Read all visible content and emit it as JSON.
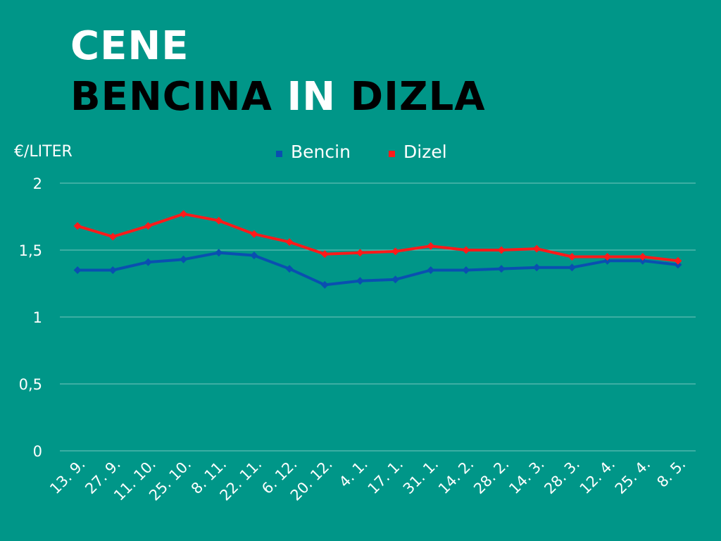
{
  "title": {
    "line1": "CENE",
    "line2_part1": "BENCINA",
    "line2_part2": "IN",
    "line2_part3": "DIZLA"
  },
  "chart_data": {
    "type": "line",
    "ylabel": "€/LITER",
    "ylim": [
      0,
      2
    ],
    "yticks": [
      "0",
      "0,5",
      "1",
      "1,5",
      "2"
    ],
    "ytick_values": [
      0,
      0.5,
      1,
      1.5,
      2
    ],
    "grid": true,
    "legend_position": "top",
    "categories": [
      "13. 9.",
      "27. 9.",
      "11. 10.",
      "25. 10.",
      "8. 11.",
      "22. 11.",
      "6. 12.",
      "20. 12.",
      "4. 1.",
      "17. 1.",
      "31. 1.",
      "14. 2.",
      "28. 2.",
      "14. 3.",
      "28. 3.",
      "12. 4.",
      "25. 4.",
      "8. 5."
    ],
    "series": [
      {
        "name": "Bencin",
        "color": "#0a4fb0",
        "values": [
          1.35,
          1.35,
          1.41,
          1.43,
          1.48,
          1.46,
          1.36,
          1.24,
          1.27,
          1.28,
          1.35,
          1.35,
          1.36,
          1.37,
          1.37,
          1.42,
          1.42,
          1.39
        ]
      },
      {
        "name": "Dizel",
        "color": "#ff1a1a",
        "values": [
          1.68,
          1.6,
          1.68,
          1.77,
          1.72,
          1.62,
          1.56,
          1.47,
          1.48,
          1.49,
          1.53,
          1.5,
          1.5,
          1.51,
          1.45,
          1.45,
          1.45,
          1.42
        ]
      }
    ]
  },
  "colors": {
    "background": "#009688",
    "grid": "#5fbdb3"
  }
}
